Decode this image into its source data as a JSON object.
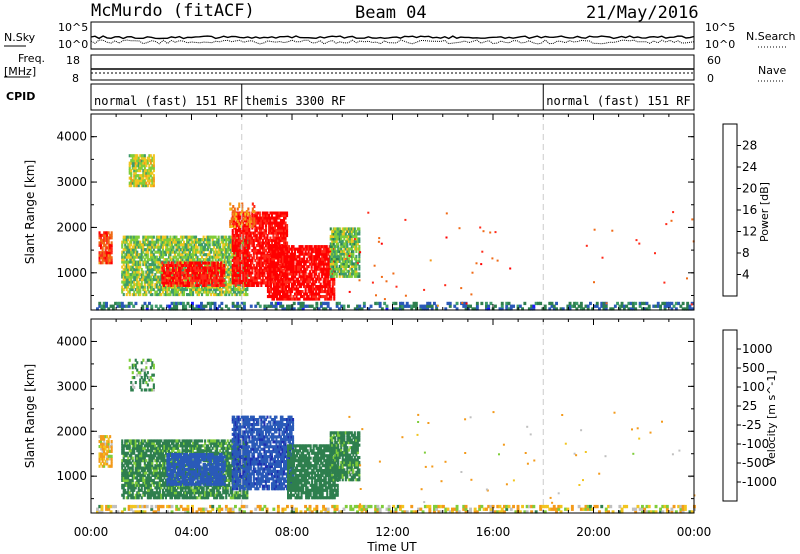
{
  "header": {
    "station": "McMurdo (fitACF)",
    "beam": "Beam 04",
    "date": "21/May/2016"
  },
  "strip_labels": {
    "nsky": "N.Sky",
    "freq": "Freq.",
    "freq_unit": "[MHz]",
    "cpid": "CPID",
    "nsearch": "N.Search",
    "nave": "Nave"
  },
  "strip_ticks": {
    "noise_left": [
      "10^5",
      "10^0"
    ],
    "noise_right": [
      "10^5",
      "10^0"
    ],
    "freq_left": [
      "18",
      "8"
    ],
    "nave_right": [
      "60",
      "0"
    ]
  },
  "cpid_modes": [
    {
      "label": "normal (fast) 151 RF",
      "start_hour": 0
    },
    {
      "label": "themis 3300 RF",
      "start_hour": 6
    },
    {
      "label": "normal (fast) 151 RF",
      "start_hour": 18
    }
  ],
  "axes": {
    "xlabel": "Time UT",
    "ylabel": "Slant Range [km]",
    "x_ticks": [
      "00:00",
      "04:00",
      "08:00",
      "12:00",
      "16:00",
      "20:00",
      "00:00"
    ],
    "y_ticks": [
      "1000",
      "2000",
      "3000",
      "4000"
    ]
  },
  "colors": {
    "power_scale": [
      "#1a1aff",
      "#2a58b8",
      "#2e7f4e",
      "#3e9b6a",
      "#7fcd3a",
      "#f2c51f",
      "#f39a1a",
      "#f06a16",
      "#ff2a1a",
      "#ff0000"
    ],
    "velocity_scale": [
      "#1f2fb3",
      "#2a5ab8",
      "#2e7f4e",
      "#7fcd3a",
      "#c0c0c0",
      "#f2c51f",
      "#f39a1a",
      "#f06a16",
      "#ff2a1a",
      "#ff0000"
    ]
  },
  "chart_data": [
    {
      "type": "heatmap",
      "name": "power",
      "x_range_hours": [
        0,
        24
      ],
      "y_range_km": [
        180,
        4500
      ],
      "colorbar_label": "Power [dB]",
      "colorbar_ticks": [
        "4",
        "8",
        "12",
        "16",
        "20",
        "24",
        "28"
      ],
      "colorbar_range": [
        0,
        32
      ],
      "regions": [
        {
          "t0": 0.3,
          "t1": 0.8,
          "r0": 1200,
          "r1": 1900,
          "v": 26
        },
        {
          "t0": 1.2,
          "t1": 6.2,
          "r0": 500,
          "r1": 1800,
          "v": 14
        },
        {
          "t0": 2.8,
          "t1": 5.3,
          "r0": 700,
          "r1": 1200,
          "v": 29
        },
        {
          "t0": 5.6,
          "t1": 7.8,
          "r0": 700,
          "r1": 2300,
          "v": 30
        },
        {
          "t0": 7.0,
          "t1": 9.7,
          "r0": 400,
          "r1": 1600,
          "v": 31
        },
        {
          "t0": 9.5,
          "t1": 10.7,
          "r0": 900,
          "r1": 2000,
          "v": 13
        },
        {
          "t0": 5.5,
          "t1": 6.5,
          "r0": 2000,
          "r1": 2500,
          "v": 22
        },
        {
          "t0": 1.5,
          "t1": 2.5,
          "r0": 2900,
          "r1": 3600,
          "v": 16
        },
        {
          "t0": 0.2,
          "t1": 24,
          "r0": 180,
          "r1": 350,
          "v": 7
        }
      ]
    },
    {
      "type": "heatmap",
      "name": "velocity",
      "x_range_hours": [
        0,
        24
      ],
      "y_range_km": [
        180,
        4500
      ],
      "colorbar_label": "Velocity [m s^-1]",
      "colorbar_ticks": [
        "1000",
        "500",
        "100",
        "25",
        "-25",
        "-100",
        "-500",
        "-1000"
      ],
      "regions": [
        {
          "t0": 0.3,
          "t1": 0.8,
          "r0": 1200,
          "r1": 1900,
          "v": -100
        },
        {
          "t0": 1.2,
          "t1": 6.2,
          "r0": 500,
          "r1": 1800,
          "v": 200
        },
        {
          "t0": 3.0,
          "t1": 5.3,
          "r0": 800,
          "r1": 1500,
          "v": 700
        },
        {
          "t0": 5.6,
          "t1": 8.0,
          "r0": 700,
          "r1": 2300,
          "v": 900
        },
        {
          "t0": 7.8,
          "t1": 9.8,
          "r0": 500,
          "r1": 1700,
          "v": 250
        },
        {
          "t0": 9.5,
          "t1": 10.7,
          "r0": 900,
          "r1": 2000,
          "v": 200
        },
        {
          "t0": 1.5,
          "t1": 2.5,
          "r0": 2900,
          "r1": 3600,
          "v": 150
        },
        {
          "t0": 0.2,
          "t1": 24,
          "r0": 180,
          "r1": 350,
          "v": -40
        }
      ]
    }
  ]
}
